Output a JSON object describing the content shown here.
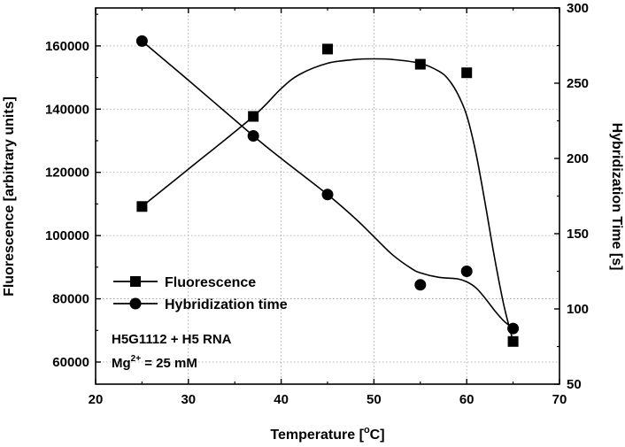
{
  "chart_data": {
    "type": "scatter",
    "x_axis": {
      "label": "Temperature [°C]",
      "label_main": "Temperature [",
      "label_sup": "o",
      "label_unit": "C]",
      "range": [
        20,
        70
      ],
      "ticks": [
        20,
        30,
        40,
        50,
        60,
        70
      ]
    },
    "y_left": {
      "label": "Fluorescence [arbitrary units]",
      "range": [
        53000,
        172000
      ],
      "ticks": [
        60000,
        80000,
        100000,
        120000,
        140000,
        160000
      ]
    },
    "y_right": {
      "label": "Hybridization Time [s]",
      "range": [
        50,
        300
      ],
      "ticks": [
        50,
        100,
        150,
        200,
        250,
        300
      ]
    },
    "grid": "dotted",
    "legend_position": "lower-left",
    "series": [
      {
        "name": "Fluorescence",
        "marker": "square",
        "axis": "left",
        "line": "smooth fit",
        "x": [
          25,
          37,
          45,
          55,
          60,
          65
        ],
        "y": [
          109200,
          137700,
          159000,
          154200,
          151500,
          66500
        ]
      },
      {
        "name": "Hybridization time",
        "marker": "circle",
        "axis": "right",
        "line": "smooth fit",
        "x": [
          25,
          37,
          45,
          55,
          60,
          65
        ],
        "y": [
          278,
          215,
          176,
          116,
          125,
          87
        ]
      }
    ],
    "fit_curves": {
      "fluorescence": [
        [
          25,
          109200
        ],
        [
          30,
          121000
        ],
        [
          37,
          137700
        ],
        [
          40,
          146500
        ],
        [
          42,
          151000
        ],
        [
          45,
          154500
        ],
        [
          48,
          155700
        ],
        [
          50,
          155900
        ],
        [
          52,
          155700
        ],
        [
          55,
          154500
        ],
        [
          57,
          152000
        ],
        [
          58,
          149500
        ],
        [
          59,
          145000
        ],
        [
          60,
          138000
        ],
        [
          61,
          126000
        ],
        [
          62,
          110000
        ],
        [
          63,
          93000
        ],
        [
          64,
          78000
        ],
        [
          65,
          66500
        ]
      ],
      "hybridization": [
        [
          25,
          278
        ],
        [
          30,
          252
        ],
        [
          37,
          215
        ],
        [
          40,
          200
        ],
        [
          45,
          176
        ],
        [
          48,
          160
        ],
        [
          50,
          148
        ],
        [
          52,
          136
        ],
        [
          54,
          127
        ],
        [
          55,
          124
        ],
        [
          57,
          121
        ],
        [
          59,
          120
        ],
        [
          60,
          118
        ],
        [
          61,
          114
        ],
        [
          62,
          107
        ],
        [
          63,
          99
        ],
        [
          64,
          92
        ],
        [
          65,
          87
        ]
      ]
    },
    "annotations": {
      "line1": "H5G1112 + H5 RNA",
      "line2_prefix": "Mg",
      "line2_sup": "2+",
      "line2_suffix": " = 25 mM"
    }
  }
}
